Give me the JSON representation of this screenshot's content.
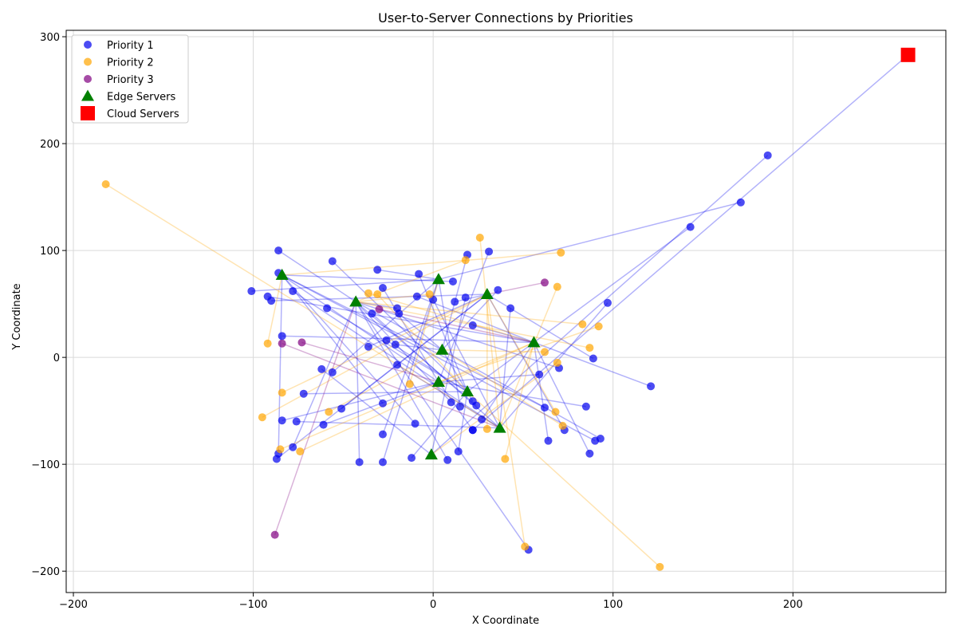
{
  "chart_data": {
    "type": "scatter",
    "title": "User-to-Server Connections by Priorities",
    "xlabel": "X Coordinate",
    "ylabel": "Y Coordinate",
    "xlim": [
      -204,
      285
    ],
    "ylim": [
      -220,
      306
    ],
    "x_ticks": [
      -200,
      -100,
      0,
      100,
      200
    ],
    "y_ticks": [
      -200,
      -100,
      0,
      100,
      200,
      300
    ],
    "x_tick_labels": [
      "−200",
      "−100",
      "0",
      "100",
      "200"
    ],
    "y_tick_labels": [
      "−200",
      "−100",
      "0",
      "100",
      "200",
      "300"
    ],
    "grid": true,
    "legend_position": "upper-left",
    "legend": [
      {
        "label": "Priority 1",
        "marker": "circle",
        "color": "#0000ee"
      },
      {
        "label": "Priority 2",
        "marker": "circle",
        "color": "#ffa500"
      },
      {
        "label": "Priority 3",
        "marker": "circle",
        "color": "#800080"
      },
      {
        "label": "Edge Servers",
        "marker": "triangle",
        "color": "#008000"
      },
      {
        "label": "Cloud Servers",
        "marker": "square",
        "color": "#ff0000"
      }
    ],
    "edge_servers": [
      {
        "id": "E1",
        "x": -84,
        "y": 77
      },
      {
        "id": "E2",
        "x": 3,
        "y": 73
      },
      {
        "id": "E3",
        "x": 30,
        "y": 59
      },
      {
        "id": "E4",
        "x": -43,
        "y": 52
      },
      {
        "id": "E5",
        "x": 56,
        "y": 14
      },
      {
        "id": "E6",
        "x": 5,
        "y": 7
      },
      {
        "id": "E7",
        "x": 3,
        "y": -23
      },
      {
        "id": "E8",
        "x": 19,
        "y": -32
      },
      {
        "id": "E9",
        "x": 37,
        "y": -66
      },
      {
        "id": "E10",
        "x": -1,
        "y": -91
      }
    ],
    "cloud_servers": [
      {
        "id": "C1",
        "x": 264,
        "y": 283
      }
    ],
    "series": [
      {
        "name": "Priority 1",
        "color": "#0000ee",
        "points": [
          {
            "x": -86,
            "y": 100,
            "to": "E4"
          },
          {
            "x": -56,
            "y": 90,
            "to": "E8"
          },
          {
            "x": -31,
            "y": 82,
            "to": "E2"
          },
          {
            "x": 19,
            "y": 96,
            "to": "E6"
          },
          {
            "x": 31,
            "y": 99,
            "to": "E7"
          },
          {
            "x": -86,
            "y": 79,
            "to": "E7"
          },
          {
            "x": -101,
            "y": 62,
            "to": "E2"
          },
          {
            "x": -92,
            "y": 57,
            "to": "E5"
          },
          {
            "x": -90,
            "y": 53,
            "to": "E3"
          },
          {
            "x": -78,
            "y": 62,
            "to": "E9"
          },
          {
            "x": -59,
            "y": 46,
            "to": "E8"
          },
          {
            "x": -28,
            "y": 65,
            "to": "E7"
          },
          {
            "x": -8,
            "y": 78,
            "to": "E8"
          },
          {
            "x": 11,
            "y": 71,
            "to": "E1"
          },
          {
            "x": 18,
            "y": 56,
            "to": "E10"
          },
          {
            "x": 36,
            "y": 63,
            "to": "E6"
          },
          {
            "x": -34,
            "y": 41,
            "to": "E9"
          },
          {
            "x": -20,
            "y": 46,
            "to": "E4"
          },
          {
            "x": -19,
            "y": 41,
            "to": "E6"
          },
          {
            "x": -9,
            "y": 57,
            "to": "E5"
          },
          {
            "x": 0,
            "y": 54,
            "to": "E9"
          },
          {
            "x": 12,
            "y": 52,
            "to": "E3"
          },
          {
            "x": 43,
            "y": 46,
            "to": "E9"
          },
          {
            "x": 97,
            "y": 51,
            "to": "E9"
          },
          {
            "x": -84,
            "y": 20,
            "to": "E5"
          },
          {
            "x": -36,
            "y": 10,
            "to": "E3"
          },
          {
            "x": -26,
            "y": 16,
            "to": "E8"
          },
          {
            "x": -21,
            "y": 12,
            "to": "E6"
          },
          {
            "x": 22,
            "y": 30,
            "to": "E5"
          },
          {
            "x": 89,
            "y": -1,
            "to": "E3"
          },
          {
            "x": -62,
            "y": -11,
            "to": "E10"
          },
          {
            "x": -56,
            "y": -14,
            "to": "E2"
          },
          {
            "x": -20,
            "y": -7,
            "to": "E9"
          },
          {
            "x": 59,
            "y": -16,
            "to": "E7"
          },
          {
            "x": 70,
            "y": -10,
            "to": "E4"
          },
          {
            "x": 121,
            "y": -27,
            "to": "E5"
          },
          {
            "x": -72,
            "y": -34,
            "to": "E8"
          },
          {
            "x": -51,
            "y": -48,
            "to": "E3"
          },
          {
            "x": -28,
            "y": -43,
            "to": "E1"
          },
          {
            "x": 10,
            "y": -42,
            "to": "E4"
          },
          {
            "x": 15,
            "y": -46,
            "to": "E2"
          },
          {
            "x": 22,
            "y": -41,
            "to": "E6"
          },
          {
            "x": 24,
            "y": -45,
            "to": "E4"
          },
          {
            "x": 27,
            "y": -58,
            "to": "E5"
          },
          {
            "x": 62,
            "y": -47,
            "to": "E1"
          },
          {
            "x": 85,
            "y": -46,
            "to": "E7"
          },
          {
            "x": -84,
            "y": -59,
            "to": "E7"
          },
          {
            "x": -76,
            "y": -60,
            "to": "E9"
          },
          {
            "x": -61,
            "y": -63,
            "to": "E7"
          },
          {
            "x": -28,
            "y": -72,
            "to": "E2"
          },
          {
            "x": -10,
            "y": -62,
            "to": "E1"
          },
          {
            "x": 22,
            "y": -68,
            "to": "E7"
          },
          {
            "x": 64,
            "y": -78,
            "to": "E5"
          },
          {
            "x": 73,
            "y": -68,
            "to": "E3"
          },
          {
            "x": 90,
            "y": -78,
            "to": "E1"
          },
          {
            "x": 93,
            "y": -76,
            "to": "E4"
          },
          {
            "x": -78,
            "y": -84,
            "to": "E4"
          },
          {
            "x": -86,
            "y": -90,
            "to": "E1"
          },
          {
            "x": -87,
            "y": -95,
            "to": "E3"
          },
          {
            "x": -41,
            "y": -98,
            "to": "E4"
          },
          {
            "x": -28,
            "y": -98,
            "to": "E2"
          },
          {
            "x": -12,
            "y": -94,
            "to": "E8"
          },
          {
            "x": 8,
            "y": -96,
            "to": "E4"
          },
          {
            "x": 14,
            "y": -88,
            "to": "E8"
          },
          {
            "x": 87,
            "y": -90,
            "to": "E5"
          },
          {
            "x": 53,
            "y": -180,
            "to": "E4"
          },
          {
            "x": 143,
            "y": 122,
            "to": "E8"
          },
          {
            "x": 171,
            "y": 145,
            "to": "E2"
          },
          {
            "x": 186,
            "y": 189,
            "to": "E10"
          },
          {
            "x": 22,
            "y": -68,
            "to": "C1"
          }
        ]
      },
      {
        "name": "Priority 2",
        "color": "#ffa500",
        "points": [
          {
            "x": -182,
            "y": 162,
            "to": "E9"
          },
          {
            "x": 26,
            "y": 112,
            "to": "E9"
          },
          {
            "x": 71,
            "y": 98,
            "to": "E1"
          },
          {
            "x": 18,
            "y": 91,
            "to": "E4"
          },
          {
            "x": -36,
            "y": 60,
            "to": "E5"
          },
          {
            "x": -31,
            "y": 59,
            "to": "E8"
          },
          {
            "x": -2,
            "y": 59,
            "to": "E4"
          },
          {
            "x": 69,
            "y": 66,
            "to": "E9"
          },
          {
            "x": 83,
            "y": 31,
            "to": "E4"
          },
          {
            "x": 92,
            "y": 29,
            "to": "E7"
          },
          {
            "x": -92,
            "y": 13,
            "to": "E1"
          },
          {
            "x": 62,
            "y": 5,
            "to": "E6"
          },
          {
            "x": 87,
            "y": 9,
            "to": "E4"
          },
          {
            "x": 69,
            "y": -5,
            "to": "E10"
          },
          {
            "x": -13,
            "y": -25,
            "to": "E2"
          },
          {
            "x": -84,
            "y": -33,
            "to": "E3"
          },
          {
            "x": -95,
            "y": -56,
            "to": "E3"
          },
          {
            "x": -58,
            "y": -51,
            "to": "E6"
          },
          {
            "x": 30,
            "y": -67,
            "to": "E3"
          },
          {
            "x": 68,
            "y": -51,
            "to": "E3"
          },
          {
            "x": 72,
            "y": -64,
            "to": "E6"
          },
          {
            "x": -85,
            "y": -86,
            "to": "E5"
          },
          {
            "x": -74,
            "y": -88,
            "to": "E5"
          },
          {
            "x": 40,
            "y": -95,
            "to": "E5"
          },
          {
            "x": 51,
            "y": -177,
            "to": "E3"
          },
          {
            "x": 126,
            "y": -196,
            "to": "E8"
          }
        ]
      },
      {
        "name": "Priority 3",
        "color": "#800080",
        "points": [
          {
            "x": 62,
            "y": 70,
            "to": "E3"
          },
          {
            "x": -30,
            "y": 45,
            "to": "E5"
          },
          {
            "x": -84,
            "y": 13,
            "to": "E9"
          },
          {
            "x": -73,
            "y": 14,
            "to": "E7"
          },
          {
            "x": -88,
            "y": -166,
            "to": "E4"
          }
        ]
      }
    ]
  }
}
